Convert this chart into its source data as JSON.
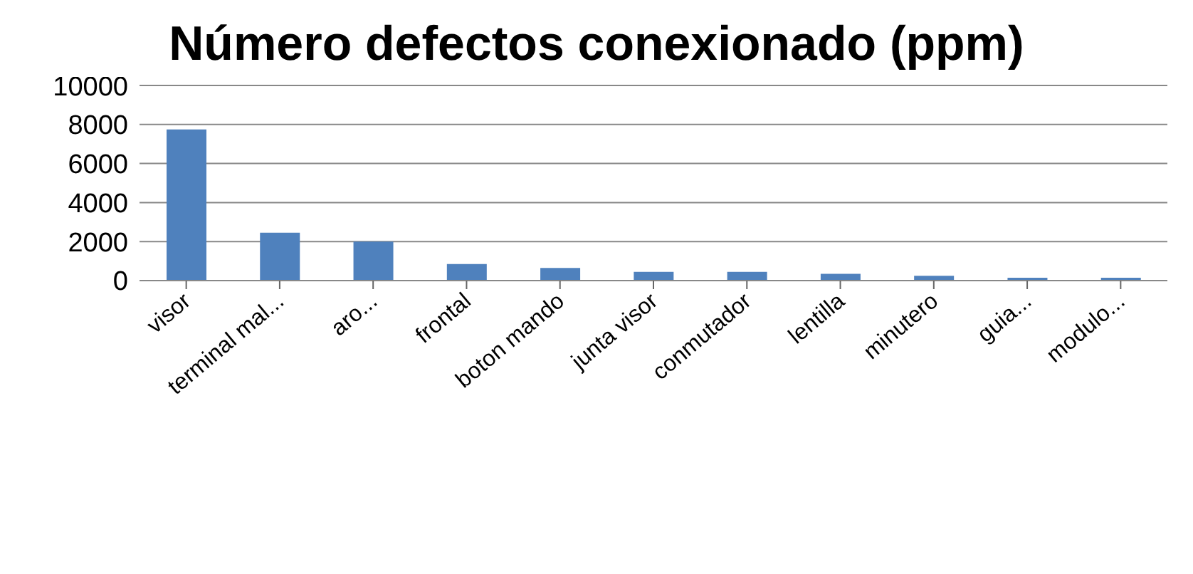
{
  "chart_data": {
    "type": "bar",
    "title": "Número defectos conexionado (ppm)",
    "categories": [
      "visor",
      "terminal mal...",
      "aro...",
      "frontal",
      "boton mando",
      "junta visor",
      "conmutador",
      "lentilla",
      "minutero",
      "guia...",
      "modulo..."
    ],
    "values": [
      7750,
      2450,
      2000,
      850,
      650,
      450,
      450,
      350,
      250,
      150,
      150
    ],
    "color": "#4f81bd",
    "ylim": [
      0,
      10000
    ],
    "yticks": [
      0,
      2000,
      4000,
      6000,
      8000,
      10000
    ],
    "grid": "y"
  }
}
